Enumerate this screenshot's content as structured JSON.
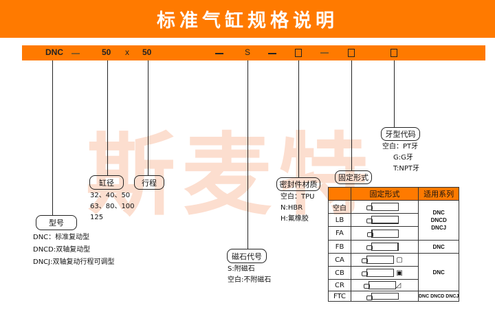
{
  "title": "标准气缸规格说明",
  "watermark": "斯麦特",
  "code": {
    "model": "DNC",
    "bore": "50",
    "x": "x",
    "stroke": "50",
    "magnet": "S"
  },
  "model": {
    "label": "型号",
    "lines": [
      "DNC：标准复动型",
      "DNCD:双轴复动型",
      "DNCJ:双轴复动行程可调型"
    ]
  },
  "bore": {
    "label": "缸径",
    "lines": [
      "32、40、50",
      "63、80、100",
      "125"
    ]
  },
  "stroke": {
    "label": "行程"
  },
  "magnet": {
    "label": "磁石代号",
    "lines": [
      "S:附磁石",
      "空白:不附磁石"
    ]
  },
  "seal": {
    "label": "密封件材质",
    "lines": [
      "空白：TPU",
      "N:HBR",
      "H:氟橡胶"
    ]
  },
  "mount": {
    "label": "固定形式"
  },
  "thread": {
    "label": "牙型代码",
    "lines": [
      "空白：PT牙",
      "G:G牙",
      "T:NPT牙"
    ]
  },
  "table": {
    "headers": [
      "",
      "固定形式",
      "适用系列"
    ],
    "rows": [
      "空白",
      "LB",
      "FA",
      "FB",
      "CA",
      "CB",
      "CR",
      "FTC"
    ],
    "series": [
      "DNC\nDNCD\nDNCJ",
      "DNC",
      "DNC",
      "DNC DNCD DNCJ"
    ]
  },
  "colors": {
    "accent": "#ff7a00",
    "watermark": "#fcd3c0"
  }
}
